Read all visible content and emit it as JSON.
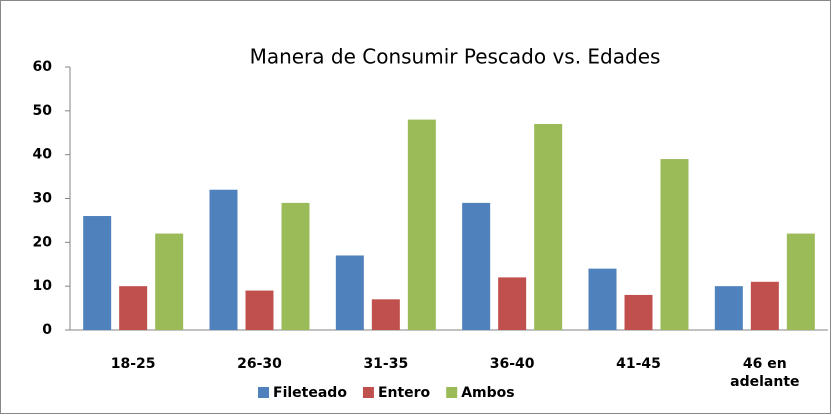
{
  "chart_data": {
    "type": "bar",
    "title": "Manera de Consumir Pescado vs. Edades",
    "categories": [
      "18-25",
      "26-30",
      "31-35",
      "36-40",
      "41-45",
      "46 en adelante"
    ],
    "series": [
      {
        "name": "Fileteado",
        "color": "#4f81bd",
        "values": [
          26,
          32,
          17,
          29,
          14,
          10
        ]
      },
      {
        "name": "Entero",
        "color": "#c0504d",
        "values": [
          10,
          9,
          7,
          12,
          8,
          11
        ]
      },
      {
        "name": "Ambos",
        "color": "#9bbb59",
        "values": [
          22,
          29,
          48,
          47,
          39,
          22
        ]
      }
    ],
    "ylim": [
      0,
      60
    ],
    "yticks": [
      0,
      10,
      20,
      30,
      40,
      50,
      60
    ],
    "grid": false,
    "legend": "bottom"
  }
}
